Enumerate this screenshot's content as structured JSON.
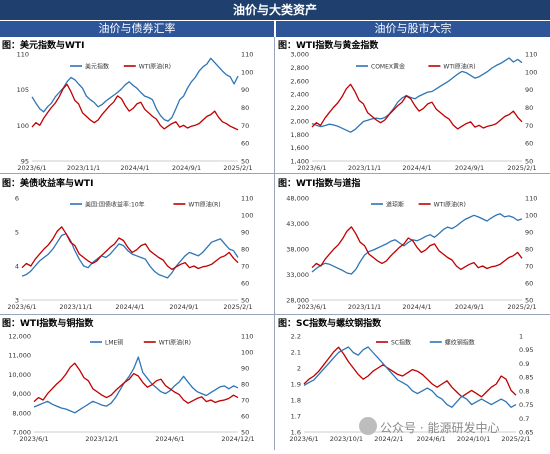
{
  "header": {
    "title": "油价与大类资产",
    "left_section": "油价与债券汇率",
    "right_section": "油价与股市大宗"
  },
  "watermark": "公众号 · 能源研发中心",
  "colors": {
    "blue": "#2e75b6",
    "red": "#c00000",
    "header_dark": "#1f3f6e",
    "header_mid": "#2e5597"
  },
  "chart_data": [
    {
      "id": "usd_wti",
      "title": "图：美元指数与WTI",
      "type": "line",
      "xticks": [
        "2023/6/1",
        "2023/11/1",
        "2024/4/1",
        "2024/9/1",
        "2025/2/1"
      ],
      "yleft": {
        "min": 95,
        "max": 110,
        "ticks": [
          95,
          100,
          105,
          110
        ]
      },
      "yright": {
        "min": 50,
        "max": 110,
        "ticks": [
          50,
          60,
          70,
          80,
          90,
          100,
          110
        ]
      },
      "series": [
        {
          "name": "美元指数",
          "axis": "left",
          "color": "#2e75b6",
          "values": [
            104.0,
            103.1,
            102.3,
            101.9,
            102.6,
            103.1,
            104.0,
            104.6,
            105.2,
            106.1,
            106.7,
            106.4,
            105.8,
            105.2,
            104.1,
            103.6,
            103.2,
            102.6,
            102.9,
            103.4,
            103.8,
            104.2,
            104.6,
            105.1,
            105.7,
            106.1,
            105.6,
            105.2,
            104.6,
            104.1,
            103.9,
            103.6,
            102.3,
            101.4,
            100.8,
            100.6,
            101.1,
            102.3,
            103.6,
            104.1,
            105.2,
            106.1,
            106.7,
            107.6,
            108.2,
            108.6,
            109.4,
            108.8,
            108.2,
            107.6,
            107.1,
            106.8,
            105.8,
            106.9
          ]
        },
        {
          "name": "WTI原油(R)",
          "axis": "right",
          "color": "#c00000",
          "values": [
            69.0,
            71.5,
            70.0,
            74.0,
            77.0,
            80.0,
            82.5,
            86.0,
            90.5,
            93.0,
            89.0,
            84.0,
            82.0,
            77.0,
            75.0,
            73.0,
            71.5,
            73.0,
            76.0,
            78.5,
            81.0,
            83.0,
            86.5,
            85.0,
            81.0,
            78.0,
            79.5,
            82.0,
            83.0,
            79.0,
            77.0,
            75.0,
            73.5,
            70.0,
            68.0,
            69.5,
            71.0,
            72.0,
            69.0,
            70.0,
            68.5,
            69.5,
            70.0,
            71.0,
            73.0,
            75.0,
            76.0,
            78.0,
            74.5,
            72.0,
            71.0,
            69.5,
            68.5,
            67.5
          ]
        }
      ]
    },
    {
      "id": "wti_gold",
      "title": "图：WTI指数与黄金指数",
      "type": "line",
      "xticks": [
        "2023/6/1",
        "2023/11/1",
        "2024/4/1",
        "2024/9/1",
        "2025/2/1"
      ],
      "yleft": {
        "min": 1400,
        "max": 3000,
        "ticks": [
          1400,
          1600,
          1800,
          2000,
          2200,
          2400,
          2600,
          2800,
          3000
        ]
      },
      "yright": {
        "min": 50,
        "max": 110,
        "ticks": [
          50,
          60,
          70,
          80,
          90,
          100,
          110
        ]
      },
      "series": [
        {
          "name": "COMEX黄金",
          "axis": "left",
          "color": "#2e75b6",
          "values": [
            1960,
            1935,
            1915,
            1930,
            1950,
            1940,
            1920,
            1890,
            1860,
            1830,
            1870,
            1930,
            1990,
            2010,
            2030,
            2040,
            2030,
            2050,
            2100,
            2180,
            2280,
            2340,
            2380,
            2350,
            2330,
            2370,
            2400,
            2430,
            2440,
            2480,
            2520,
            2560,
            2600,
            2650,
            2700,
            2740,
            2720,
            2680,
            2640,
            2660,
            2700,
            2740,
            2790,
            2830,
            2860,
            2900,
            2940,
            2880,
            2920,
            2870
          ]
        },
        {
          "name": "WTI原油(R)",
          "axis": "right",
          "color": "#c00000",
          "values": [
            69.0,
            71.5,
            70.0,
            74.0,
            77.0,
            80.0,
            82.5,
            86.0,
            90.5,
            93.0,
            89.0,
            84.0,
            82.0,
            77.0,
            75.0,
            73.0,
            71.5,
            73.0,
            76.0,
            78.5,
            81.0,
            83.0,
            86.5,
            85.0,
            81.0,
            78.0,
            79.5,
            82.0,
            83.0,
            79.0,
            77.0,
            75.0,
            73.5,
            70.0,
            68.0,
            69.5,
            71.0,
            72.0,
            69.0,
            70.0,
            68.5,
            69.5,
            70.0,
            71.0,
            73.0,
            75.0,
            76.0,
            78.0,
            74.5,
            72.0
          ]
        }
      ]
    },
    {
      "id": "ust_wti",
      "title": "图：美债收益率与WTI",
      "type": "line",
      "xticks": [
        "2023/6/1",
        "2023/11/1",
        "2024/4/1",
        "2024/9/1",
        "2025/2/1"
      ],
      "yleft": {
        "min": 3,
        "max": 6,
        "ticks": [
          3,
          4,
          5,
          6
        ]
      },
      "yright": {
        "min": 50,
        "max": 110,
        "ticks": [
          50,
          60,
          70,
          80,
          90,
          100,
          110
        ]
      },
      "series": [
        {
          "name": "美国:国债收益率:10年",
          "axis": "left",
          "color": "#2e75b6",
          "values": [
            3.7,
            3.75,
            3.85,
            4.0,
            4.15,
            4.25,
            4.35,
            4.5,
            4.7,
            4.9,
            4.95,
            4.75,
            4.45,
            4.2,
            4.0,
            3.95,
            4.1,
            4.2,
            4.3,
            4.25,
            4.35,
            4.5,
            4.65,
            4.6,
            4.45,
            4.35,
            4.3,
            4.25,
            4.2,
            4.0,
            3.85,
            3.75,
            3.7,
            3.65,
            3.8,
            4.0,
            4.15,
            4.3,
            4.4,
            4.35,
            4.3,
            4.4,
            4.55,
            4.7,
            4.75,
            4.8,
            4.65,
            4.5,
            4.45,
            4.25
          ]
        },
        {
          "name": "WTI原油(R)",
          "axis": "right",
          "color": "#c00000",
          "values": [
            69.0,
            71.5,
            70.0,
            74.0,
            77.0,
            80.0,
            82.5,
            86.0,
            90.5,
            93.0,
            89.0,
            84.0,
            82.0,
            77.0,
            75.0,
            73.0,
            71.5,
            73.0,
            76.0,
            78.5,
            81.0,
            83.0,
            86.5,
            85.0,
            81.0,
            78.0,
            79.5,
            82.0,
            83.0,
            79.0,
            77.0,
            75.0,
            73.5,
            70.0,
            68.0,
            69.5,
            71.0,
            72.0,
            69.0,
            70.0,
            68.5,
            69.5,
            70.0,
            71.0,
            73.0,
            75.0,
            76.0,
            78.0,
            74.5,
            72.0
          ]
        }
      ]
    },
    {
      "id": "wti_dow",
      "title": "图：WTI指数与道指",
      "type": "line",
      "xticks": [
        "2023/6/1",
        "2023/11/1",
        "2024/4/1",
        "2024/9/1",
        "2025/2/1"
      ],
      "yleft": {
        "min": 28000,
        "max": 48000,
        "ticks": [
          28000,
          33000,
          38000,
          43000,
          48000
        ]
      },
      "yright": {
        "min": 50,
        "max": 110,
        "ticks": [
          50,
          60,
          70,
          80,
          90,
          100,
          110
        ]
      },
      "series": [
        {
          "name": "道琼斯",
          "axis": "left",
          "color": "#2e75b6",
          "values": [
            33500,
            34200,
            34800,
            35200,
            35000,
            34600,
            34200,
            33800,
            33300,
            33100,
            34000,
            35500,
            36800,
            37500,
            37800,
            38200,
            38600,
            39000,
            39500,
            39800,
            39200,
            38600,
            39300,
            39800,
            39600,
            40000,
            40500,
            40800,
            40300,
            41000,
            41800,
            42300,
            42000,
            42500,
            43200,
            43800,
            44200,
            44600,
            44300,
            43900,
            43500,
            44100,
            44600,
            44900,
            44300,
            44500,
            44200,
            43600,
            43900
          ]
        },
        {
          "name": "WTI原油(R)",
          "axis": "right",
          "color": "#c00000",
          "values": [
            69.0,
            71.5,
            70.0,
            74.0,
            77.0,
            80.0,
            82.5,
            86.0,
            90.5,
            93.0,
            89.0,
            84.0,
            82.0,
            77.0,
            75.0,
            73.0,
            71.5,
            73.0,
            76.0,
            78.5,
            81.0,
            83.0,
            86.5,
            85.0,
            81.0,
            78.0,
            79.5,
            82.0,
            83.0,
            79.0,
            77.0,
            75.0,
            73.5,
            70.0,
            68.0,
            69.5,
            71.0,
            72.0,
            69.0,
            70.0,
            68.5,
            69.5,
            70.0,
            71.0,
            73.0,
            75.0,
            76.0,
            78.0,
            74.5
          ]
        }
      ]
    },
    {
      "id": "wti_copper",
      "title": "图：WTI指数与铜指数",
      "type": "line",
      "xticks": [
        "2023/6/1",
        "2023/12/1",
        "2024/6/1",
        "2024/12/1"
      ],
      "yleft": {
        "min": 7000,
        "max": 12000,
        "ticks": [
          7000,
          8000,
          9000,
          10000,
          11000,
          12000
        ]
      },
      "yright": {
        "min": 50,
        "max": 110,
        "ticks": [
          50,
          60,
          70,
          80,
          90,
          100,
          110
        ]
      },
      "series": [
        {
          "name": "LME铜",
          "axis": "left",
          "color": "#2e75b6",
          "values": [
            8300,
            8400,
            8500,
            8600,
            8450,
            8350,
            8250,
            8200,
            8100,
            8000,
            8150,
            8300,
            8450,
            8600,
            8500,
            8400,
            8350,
            8500,
            8800,
            9200,
            9600,
            9900,
            10300,
            10900,
            10100,
            9800,
            9500,
            9300,
            9100,
            9000,
            9150,
            9400,
            9600,
            9900,
            9600,
            9300,
            9100,
            9000,
            8900,
            9050,
            9200,
            9350,
            9400,
            9250,
            9400,
            9300
          ]
        },
        {
          "name": "WTI原油(R)",
          "axis": "right",
          "color": "#c00000",
          "values": [
            69.0,
            71.5,
            70.0,
            74.0,
            77.0,
            80.0,
            82.5,
            86.0,
            90.5,
            93.0,
            89.0,
            84.0,
            82.0,
            77.0,
            75.0,
            73.0,
            71.5,
            73.0,
            76.0,
            78.5,
            81.0,
            83.0,
            86.5,
            85.0,
            81.0,
            78.0,
            79.5,
            82.0,
            83.0,
            79.0,
            77.0,
            75.0,
            73.5,
            70.0,
            68.0,
            69.5,
            71.0,
            72.0,
            69.0,
            70.0,
            68.5,
            69.5,
            70.0,
            71.0,
            73.0,
            71.5
          ]
        }
      ]
    },
    {
      "id": "sc_rebar",
      "title": "图：SC指数与螺纹钢指数",
      "type": "line",
      "xticks": [
        "2023/6/1",
        "2023/10/1",
        "2024/2/1",
        "2024/6/1",
        "2024/10/1",
        "2025/2/1"
      ],
      "yleft": {
        "min": 1.6,
        "max": 2.2,
        "ticks": [
          1.6,
          1.7,
          1.8,
          1.9,
          2.0,
          2.1,
          2.2
        ]
      },
      "yright": {
        "min": 0.65,
        "max": 1.0,
        "ticks": [
          0.65,
          0.7,
          0.75,
          0.8,
          0.85,
          0.9,
          0.95,
          1.0
        ]
      },
      "series": [
        {
          "name": "SC指数",
          "axis": "left",
          "color": "#c00000",
          "values": [
            1.9,
            1.93,
            1.95,
            1.98,
            2.02,
            2.06,
            2.1,
            2.13,
            2.09,
            2.04,
            2.0,
            1.96,
            1.93,
            1.95,
            1.98,
            2.0,
            2.02,
            2.0,
            1.98,
            1.96,
            1.95,
            1.97,
            1.99,
            1.98,
            1.96,
            1.93,
            1.9,
            1.88,
            1.9,
            1.92,
            1.88,
            1.85,
            1.82,
            1.84,
            1.86,
            1.84,
            1.82,
            1.85,
            1.88,
            1.9,
            1.95,
            1.93,
            1.86,
            1.83
          ]
        },
        {
          "name": "螺纹钢指数",
          "axis": "right",
          "color": "#2e75b6",
          "values": [
            0.82,
            0.83,
            0.84,
            0.86,
            0.88,
            0.9,
            0.92,
            0.94,
            0.95,
            0.96,
            0.94,
            0.93,
            0.95,
            0.96,
            0.94,
            0.92,
            0.9,
            0.88,
            0.86,
            0.84,
            0.83,
            0.82,
            0.8,
            0.79,
            0.8,
            0.81,
            0.8,
            0.78,
            0.77,
            0.75,
            0.74,
            0.76,
            0.78,
            0.77,
            0.75,
            0.76,
            0.77,
            0.76,
            0.75,
            0.76,
            0.77,
            0.76,
            0.74,
            0.75
          ]
        }
      ]
    }
  ]
}
